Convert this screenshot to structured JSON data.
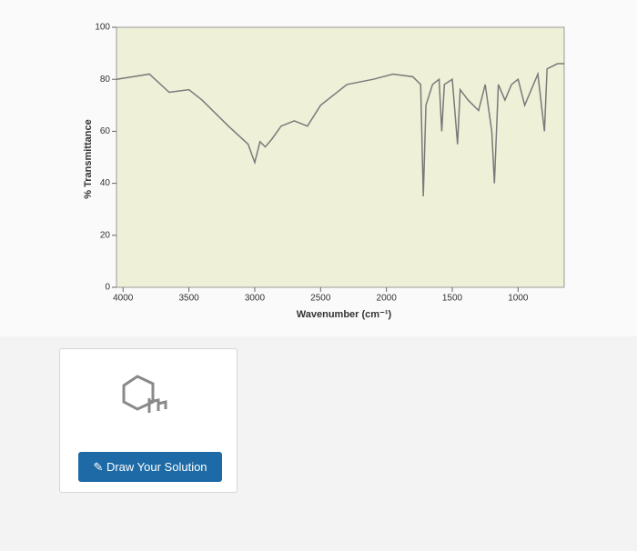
{
  "chart_data": {
    "type": "line",
    "y_label": "% Transmittance",
    "x_label": "Wavenumber (cm⁻¹)",
    "x": [
      4050,
      3800,
      3650,
      3500,
      3400,
      3200,
      3050,
      3000,
      2960,
      2920,
      2870,
      2800,
      2700,
      2600,
      2500,
      2300,
      2100,
      1950,
      1800,
      1740,
      1720,
      1700,
      1650,
      1600,
      1580,
      1560,
      1500,
      1460,
      1440,
      1380,
      1300,
      1250,
      1200,
      1180,
      1150,
      1100,
      1050,
      1000,
      950,
      900,
      850,
      800,
      780,
      700,
      650
    ],
    "values": [
      80,
      82,
      75,
      76,
      72,
      62,
      55,
      48,
      56,
      54,
      57,
      62,
      64,
      62,
      70,
      78,
      80,
      82,
      81,
      78,
      35,
      70,
      78,
      80,
      60,
      78,
      80,
      55,
      76,
      72,
      68,
      78,
      60,
      40,
      78,
      72,
      78,
      80,
      70,
      76,
      82,
      60,
      84,
      86,
      86
    ],
    "color": "#7a7a7a",
    "plot_background": "#eef0d8",
    "xlim": [
      4050,
      650
    ],
    "xticks": [
      4000,
      3500,
      3000,
      2500,
      2000,
      1500,
      1000
    ],
    "ylim": [
      0,
      100
    ],
    "yticks": [
      0,
      20,
      40,
      60,
      80,
      100
    ]
  },
  "solution_panel": {
    "button": "Draw Your Solution"
  }
}
